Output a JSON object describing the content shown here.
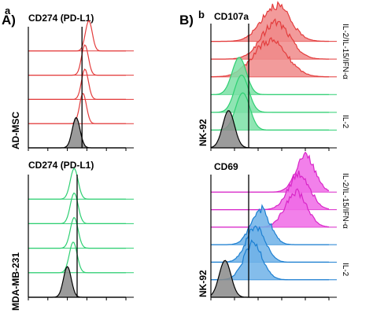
{
  "figure": {
    "panel_a": {
      "small_letter": "a",
      "letter": "A)"
    },
    "panel_b": {
      "letter": "B)",
      "small_letter": "b"
    }
  },
  "colors": {
    "red_fill": "#f08a8a",
    "red_line": "#e33c3c",
    "green_fill": "#7be0a6",
    "green_line": "#2ecf72",
    "magenta_fill": "#f06ae6",
    "magenta_line": "#d826c8",
    "blue_fill": "#6fb2e8",
    "blue_line": "#1c7fd1",
    "gray_fill": "#8a8a8a",
    "gray_line": "#000000"
  },
  "chart_data": [
    {
      "type": "area",
      "title": "CD274 (PD-L1)",
      "ylabel": "AD-MSC",
      "tracks": [
        {
          "color": "red",
          "peak": 0.62,
          "width": 0.035,
          "filled": false
        },
        {
          "color": "red",
          "peak": 0.58,
          "width": 0.035,
          "filled": false
        },
        {
          "color": "red",
          "peak": 0.58,
          "width": 0.035,
          "filled": false
        },
        {
          "color": "red",
          "peak": 0.56,
          "width": 0.035,
          "filled": false
        },
        {
          "color": "gray",
          "peak": 0.49,
          "width": 0.04,
          "filled": true
        }
      ],
      "marker_x": 0.55,
      "grid": false
    },
    {
      "type": "area",
      "title": "CD274 (PD-L1)",
      "ylabel": "MDA-MB-231",
      "tracks": [
        {
          "color": "green",
          "peak": 0.47,
          "width": 0.04,
          "filled": false
        },
        {
          "color": "green",
          "peak": 0.47,
          "width": 0.04,
          "filled": false
        },
        {
          "color": "green",
          "peak": 0.47,
          "width": 0.04,
          "filled": false
        },
        {
          "color": "green",
          "peak": 0.46,
          "width": 0.04,
          "filled": false
        },
        {
          "color": "gray",
          "peak": 0.4,
          "width": 0.04,
          "filled": true
        }
      ],
      "marker_x": 0.5,
      "grid": false
    },
    {
      "type": "area",
      "title": "CD107a",
      "ylabel": "NK-92",
      "group_labels": [
        "IL-2/IL-15/IFN-α",
        "IL-2"
      ],
      "tracks": [
        {
          "color": "red",
          "peak": 0.55,
          "width": 0.12,
          "filled": true
        },
        {
          "color": "red",
          "peak": 0.55,
          "width": 0.12,
          "filled": true
        },
        {
          "color": "red",
          "peak": 0.5,
          "width": 0.14,
          "filled": true
        },
        {
          "color": "green",
          "peak": 0.24,
          "width": 0.06,
          "filled": true
        },
        {
          "color": "green",
          "peak": 0.26,
          "width": 0.06,
          "filled": true
        },
        {
          "color": "green",
          "peak": 0.27,
          "width": 0.06,
          "filled": true
        },
        {
          "color": "gray",
          "peak": 0.15,
          "width": 0.05,
          "filled": true
        }
      ],
      "marker_x": 0.32,
      "grid": false
    },
    {
      "type": "area",
      "title": "CD69",
      "ylabel": "NK-92",
      "group_labels": [
        "IL-2/IL-15/IFN-α",
        "IL-2"
      ],
      "tracks": [
        {
          "color": "magenta",
          "peak": 0.8,
          "width": 0.08,
          "filled": true
        },
        {
          "color": "magenta",
          "peak": 0.75,
          "width": 0.09,
          "filled": true
        },
        {
          "color": "magenta",
          "peak": 0.72,
          "width": 0.09,
          "filled": true
        },
        {
          "color": "blue",
          "peak": 0.42,
          "width": 0.08,
          "filled": true
        },
        {
          "color": "blue",
          "peak": 0.38,
          "width": 0.08,
          "filled": true
        },
        {
          "color": "blue",
          "peak": 0.36,
          "width": 0.08,
          "filled": true
        },
        {
          "color": "gray",
          "peak": 0.12,
          "width": 0.05,
          "filled": true
        }
      ],
      "marker_x": 0.32,
      "grid": false
    }
  ]
}
